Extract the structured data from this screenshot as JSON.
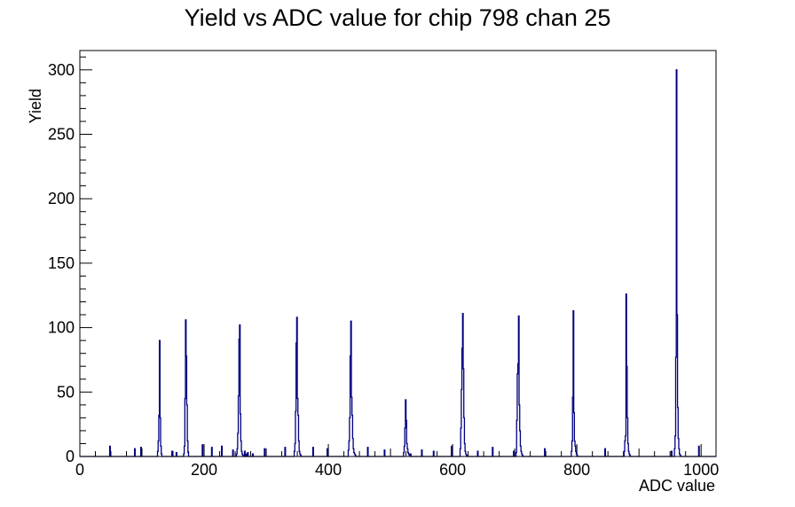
{
  "chart_data": {
    "type": "histogram",
    "title": "Yield vs ADC value for chip 798 chan 25",
    "xlabel": "ADC value",
    "ylabel": "Yield",
    "xlim": [
      0,
      1024
    ],
    "ylim": [
      0,
      315
    ],
    "x_ticks": [
      0,
      200,
      400,
      600,
      800,
      1000
    ],
    "y_ticks": [
      0,
      50,
      100,
      150,
      200,
      250,
      300
    ],
    "x_tick_labels": [
      "0",
      "200",
      "400",
      "600",
      "800",
      "1000"
    ],
    "y_tick_labels": [
      "0",
      "50",
      "100",
      "150",
      "200",
      "250",
      "300"
    ],
    "line_color": "#000080",
    "grid": false,
    "legend": false,
    "bin_width": 1,
    "series": [
      {
        "x": [
          48,
          88,
          98,
          125,
          126,
          127,
          128,
          129,
          130,
          131,
          148,
          155,
          167,
          168,
          169,
          170,
          171,
          172,
          173,
          174,
          197,
          212,
          228,
          246,
          252,
          253,
          254,
          255,
          256,
          257,
          258,
          259,
          260,
          261,
          262,
          263,
          265,
          268,
          270,
          278,
          297,
          330,
          345,
          346,
          347,
          348,
          349,
          350,
          351,
          352,
          353,
          354,
          355,
          356,
          375,
          398,
          432,
          433,
          434,
          435,
          436,
          437,
          438,
          439,
          440,
          441,
          442,
          443,
          463,
          490,
          521,
          522,
          523,
          524,
          525,
          526,
          527,
          528,
          529,
          530,
          531,
          532,
          533,
          550,
          569,
          598,
          612,
          613,
          614,
          615,
          616,
          617,
          618,
          619,
          620,
          621,
          622,
          623,
          624,
          640,
          664,
          698,
          702,
          703,
          704,
          705,
          706,
          707,
          708,
          709,
          710,
          711,
          712,
          713,
          714,
          748,
          791,
          792,
          793,
          794,
          795,
          796,
          797,
          798,
          799,
          800,
          801,
          802,
          803,
          845,
          876,
          877,
          878,
          879,
          880,
          881,
          882,
          883,
          884,
          885,
          886,
          887,
          952,
          957,
          958,
          959,
          960,
          961,
          962,
          963,
          964,
          965,
          966,
          967,
          968,
          969,
          996
        ],
        "values": [
          8,
          6,
          7,
          4,
          12,
          32,
          90,
          30,
          8,
          2,
          4,
          3,
          2,
          8,
          45,
          106,
          78,
          40,
          12,
          3,
          9,
          7,
          8,
          5,
          2,
          6,
          18,
          47,
          91,
          102,
          33,
          12,
          4,
          2,
          1,
          0,
          4,
          2,
          3,
          2,
          6,
          7,
          4,
          10,
          35,
          88,
          108,
          45,
          32,
          12,
          4,
          2,
          1,
          0,
          7,
          6,
          5,
          12,
          30,
          78,
          105,
          46,
          32,
          14,
          6,
          3,
          2,
          1,
          7,
          5,
          3,
          8,
          22,
          44,
          28,
          10,
          6,
          3,
          2,
          1,
          1,
          2,
          0,
          5,
          4,
          8,
          6,
          22,
          52,
          84,
          111,
          68,
          30,
          10,
          4,
          2,
          1,
          0,
          0,
          4,
          7,
          4,
          3,
          28,
          64,
          72,
          109,
          40,
          20,
          8,
          4,
          2,
          1,
          0,
          0,
          6,
          4,
          12,
          46,
          113,
          34,
          12,
          8,
          4,
          2,
          1,
          0,
          0,
          0,
          6,
          4,
          12,
          16,
          126,
          70,
          30,
          10,
          4,
          2,
          1,
          0,
          0,
          4,
          6,
          16,
          77,
          300,
          110,
          38,
          14,
          6,
          2,
          1,
          0,
          0,
          0,
          8
        ]
      }
    ]
  }
}
